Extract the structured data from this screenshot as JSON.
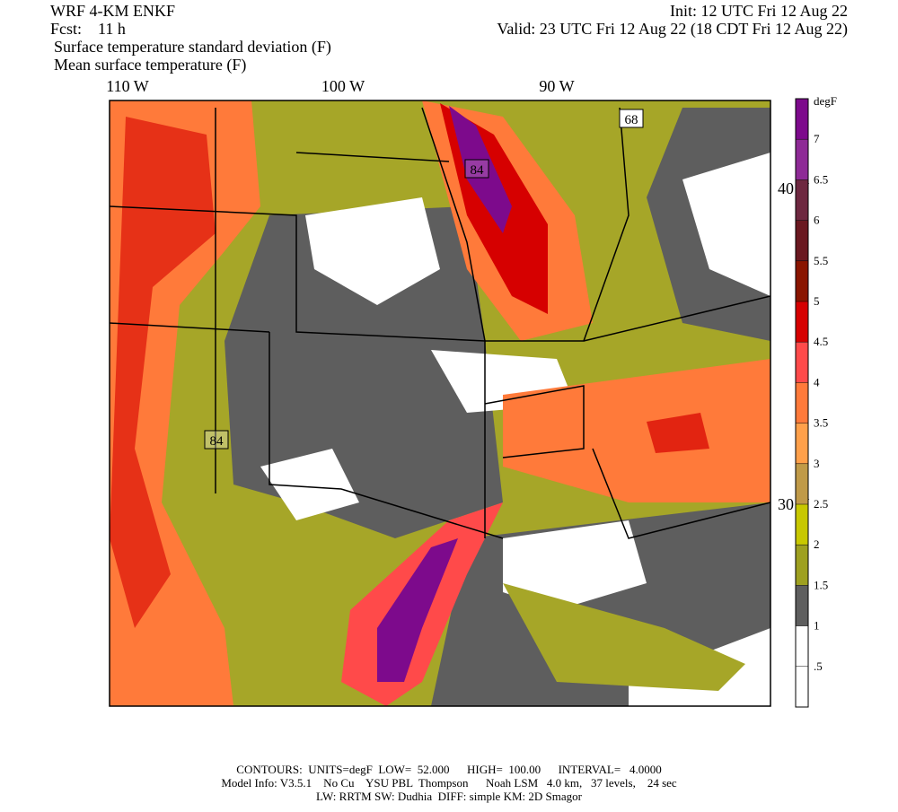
{
  "header": {
    "model": "WRF 4-KM ENKF",
    "init": "Init: 12 UTC Fri 12 Aug 22",
    "fcst": "Fcst:    11 h",
    "valid": "Valid: 23 UTC Fri 12 Aug 22 (18 CDT Fri 12 Aug 22)",
    "field1": "Surface temperature standard deviation (F)",
    "field2": "Mean surface temperature (F)"
  },
  "axes": {
    "lon": [
      "110 W",
      "100 W",
      "90 W"
    ],
    "lat": [
      "40 N",
      "30 N"
    ]
  },
  "contour_labels": [
    "68",
    "84",
    "84"
  ],
  "colorbar": {
    "unit": "degF",
    "levels": [
      7,
      6.5,
      6,
      5.5,
      5,
      4.5,
      4,
      3.5,
      3,
      2.5,
      2,
      1.5,
      1,
      {
        "value": 0.5,
        "label": ".5"
      }
    ],
    "colors": [
      "#7d0a8c",
      "#8e2a96",
      "#6e2840",
      "#6a1820",
      "#8a1500",
      "#d60000",
      "#ff4a4a",
      "#ff7a3a",
      "#ffa04a",
      "#c09a48",
      "#c8c800",
      "#9ea020",
      "#5e5e5e",
      "#ffffff",
      "#ffffff"
    ]
  },
  "footer": [
    "CONTOURS:  UNITS=degF  LOW=  52.000      HIGH=  100.00      INTERVAL=   4.0000",
    "Model Info: V3.5.1    No Cu    YSU PBL  Thompson      Noah LSM   4.0 km,   37 levels,    24 sec",
    "LW: RRTM SW: Dudhia  DIFF: simple KM: 2D Smagor"
  ]
}
